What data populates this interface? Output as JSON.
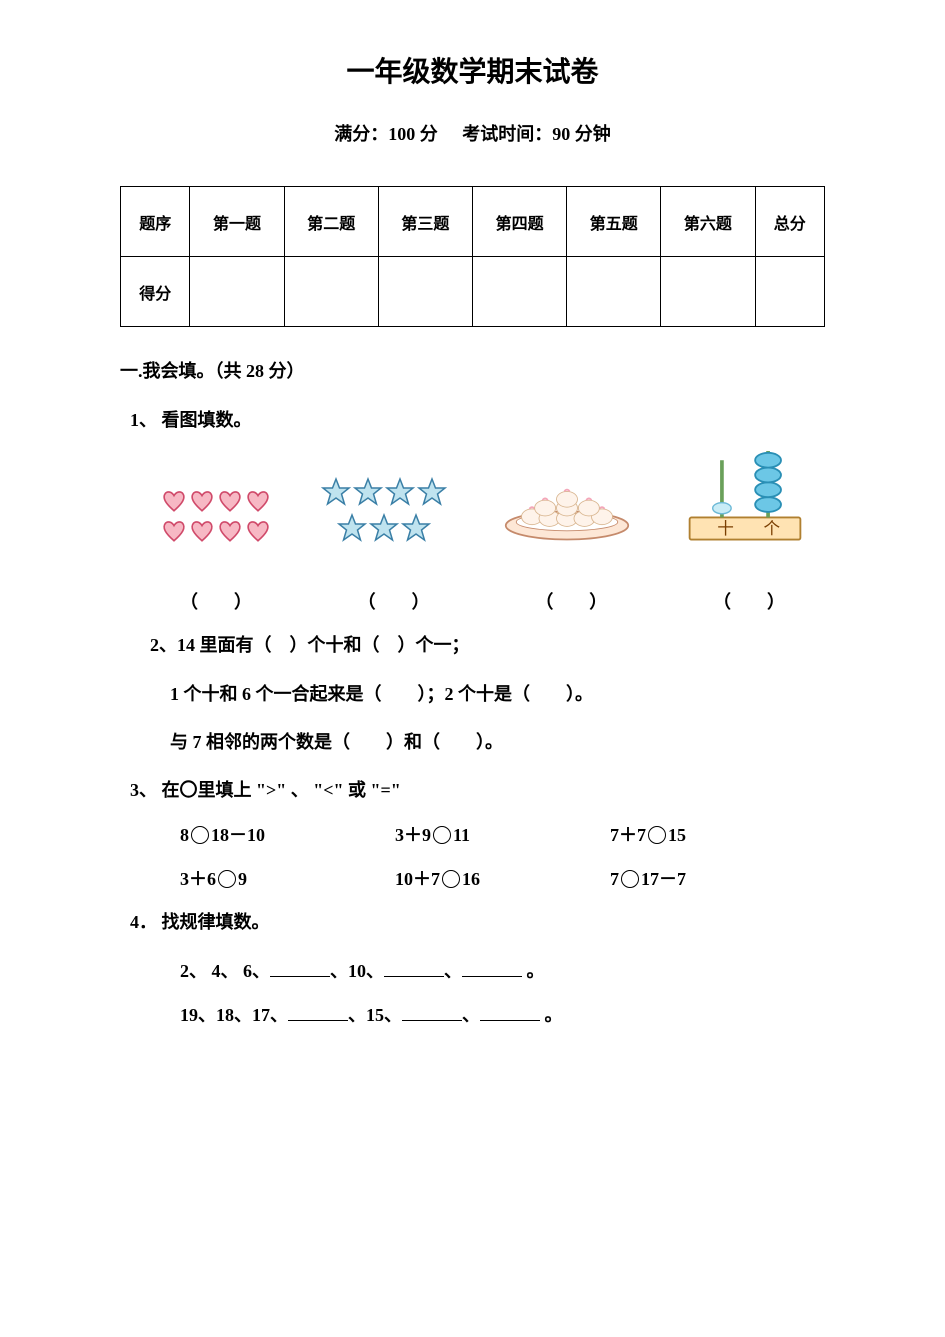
{
  "doc": {
    "title": "一年级数学期末试卷",
    "subtitle_left": "满分：100 分",
    "subtitle_right": "考试时间：90 分钟"
  },
  "score_table": {
    "headers": [
      "题序",
      "第一题",
      "第二题",
      "第三题",
      "第四题",
      "第五题",
      "第六题",
      "总分"
    ],
    "row_label": "得分"
  },
  "s1": {
    "heading": "一.我会填。（共 28 分）",
    "q1_label": "1、 看图填数。",
    "paren": "（　　）",
    "q2a": "2、14 里面有（　）个十和（　）个一；",
    "q2b": "1 个十和 6 个一合起来是（　　）；2 个十是（　　）。",
    "q2c": "与 7 相邻的两个数是（　　）和（　　）。",
    "q3_label": "3、 在〇里填上 \">\" 、 \"<\" 或 \"=\"",
    "comp": {
      "r1c1_a": "8",
      "r1c1_b": "18－10",
      "r1c2_a": "3＋9",
      "r1c2_b": "11",
      "r1c3_a": "7＋7",
      "r1c3_b": "15",
      "r2c1_a": "3＋6",
      "r2c1_b": "9",
      "r2c2_a": "10＋7",
      "r2c2_b": "16",
      "r2c3_a": "7",
      "r2c3_b": "17－7"
    },
    "q4_label": "4． 找规律填数。",
    "pat1_a": "2、 4、 6、",
    "pat1_b": "、10、",
    "pat1_c": "、",
    "pat1_d": "。",
    "pat2_a": "19、18、17、",
    "pat2_b": "、15、",
    "pat2_c": "、",
    "pat2_d": "。"
  },
  "figures": {
    "heart_color": "#f7b8c4",
    "heart_stroke": "#d04a6a",
    "star_fill": "#bfe3ef",
    "star_stroke": "#3a7fa6",
    "plate_fill": "#fde7d6",
    "plate_stroke": "#c58a6b",
    "bun_fill": "#fef3ea",
    "bun_top": "#f4a7b9",
    "abacus_base_fill": "#ffe3b3",
    "abacus_base_stroke": "#b08030",
    "abacus_rod": "#6aa05a",
    "abacus_bead_blue": "#6cc7e6",
    "abacus_text_ten": "十",
    "abacus_text_one": "个"
  }
}
